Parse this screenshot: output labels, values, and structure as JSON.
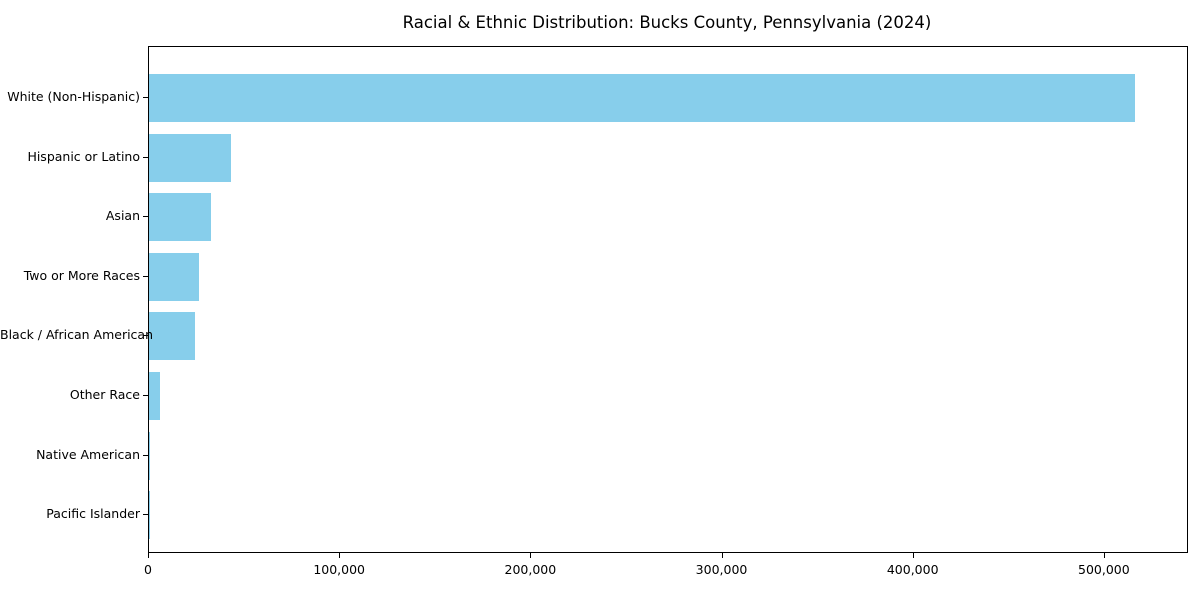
{
  "page": {
    "background_color": "#ffffff",
    "text_color": "#000000"
  },
  "chart_data": {
    "type": "bar",
    "orientation": "horizontal",
    "title": "Racial & Ethnic Distribution: Bucks County, Pennsylvania (2024)",
    "categories": [
      "White (Non-Hispanic)",
      "Hispanic or Latino",
      "Asian",
      "Two or More Races",
      "Black / African American",
      "Other Race",
      "Native American",
      "Pacific Islander"
    ],
    "values": [
      517000,
      43000,
      32500,
      26000,
      24000,
      5800,
      600,
      200
    ],
    "xlabel": "",
    "ylabel": "",
    "xlim": [
      0,
      544000
    ],
    "x_ticks": [
      0,
      100000,
      200000,
      300000,
      400000,
      500000
    ],
    "x_tick_labels": [
      "0",
      "100,000",
      "200,000",
      "300,000",
      "400,000",
      "500,000"
    ],
    "bar_color": "#87CEEB",
    "grid": false,
    "legend": null,
    "plot_border": true
  }
}
